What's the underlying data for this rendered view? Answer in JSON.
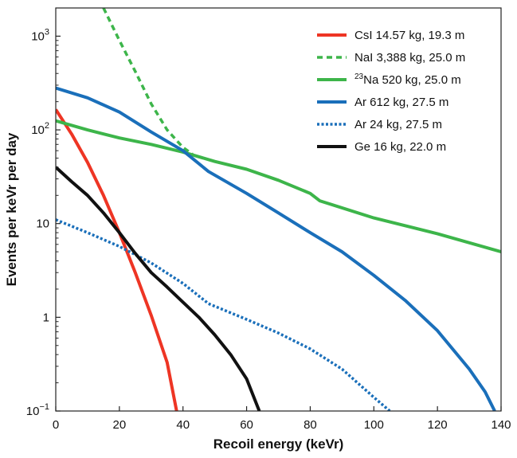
{
  "chart_data": {
    "type": "line",
    "title": "",
    "xlabel": "Recoil energy (keVr)",
    "ylabel": "Events per keVr per day",
    "xlim": [
      0,
      140
    ],
    "ylim": [
      0.1,
      2000
    ],
    "yscale": "log",
    "x_ticks": [
      0,
      20,
      40,
      60,
      80,
      100,
      120,
      140
    ],
    "y_ticks": [
      {
        "value": 0.1,
        "base": "10",
        "exp": "−1"
      },
      {
        "value": 1,
        "text": "1"
      },
      {
        "value": 10,
        "text": "10"
      },
      {
        "value": 100,
        "base": "10",
        "exp": "2"
      },
      {
        "value": 1000,
        "base": "10",
        "exp": "3"
      }
    ],
    "legend_position": "top-right",
    "series": [
      {
        "name": "CsI 14.57 kg, 19.3 m",
        "label_sup": "",
        "label_main": "CsI 14.57 kg, 19.3 m",
        "color": "#ee3524",
        "style": "solid",
        "points": [
          [
            0,
            165
          ],
          [
            5,
            90
          ],
          [
            10,
            45
          ],
          [
            15,
            20
          ],
          [
            20,
            8
          ],
          [
            25,
            3
          ],
          [
            30,
            1.05
          ],
          [
            35,
            0.33
          ],
          [
            38,
            0.1
          ]
        ]
      },
      {
        "name": "NaI 3,388 kg, 25.0 m",
        "label_sup": "",
        "label_main": "NaI 3,388 kg, 25.0 m",
        "color": "#3db54a",
        "style": "dashed",
        "points": [
          [
            15,
            2000
          ],
          [
            20,
            900
          ],
          [
            25,
            420
          ],
          [
            30,
            190
          ],
          [
            35,
            100
          ],
          [
            40,
            65
          ],
          [
            43,
            55
          ]
        ]
      },
      {
        "name": "23Na 520 kg, 25.0 m",
        "label_sup": "23",
        "label_main": "Na 520 kg, 25.0 m",
        "color": "#3db54a",
        "style": "solid",
        "points": [
          [
            0,
            125
          ],
          [
            10,
            100
          ],
          [
            20,
            82
          ],
          [
            30,
            70
          ],
          [
            40,
            58
          ],
          [
            50,
            46
          ],
          [
            60,
            38
          ],
          [
            70,
            29
          ],
          [
            80,
            21
          ],
          [
            83,
            17.5
          ],
          [
            100,
            11.5
          ],
          [
            120,
            7.8
          ],
          [
            140,
            5
          ]
        ]
      },
      {
        "name": "Ar 612 kg, 27.5 m",
        "label_sup": "",
        "label_main": "Ar 612 kg, 27.5 m",
        "color": "#1a6fba",
        "style": "solid",
        "points": [
          [
            0,
            280
          ],
          [
            10,
            220
          ],
          [
            20,
            155
          ],
          [
            30,
            95
          ],
          [
            40,
            60
          ],
          [
            48,
            36
          ],
          [
            60,
            21
          ],
          [
            70,
            13
          ],
          [
            80,
            8
          ],
          [
            90,
            5
          ],
          [
            100,
            2.8
          ],
          [
            110,
            1.5
          ],
          [
            120,
            0.72
          ],
          [
            130,
            0.28
          ],
          [
            135,
            0.16
          ],
          [
            138,
            0.1
          ]
        ]
      },
      {
        "name": "Ar 24 kg, 27.5 m",
        "label_sup": "",
        "label_main": "Ar 24 kg, 27.5 m",
        "color": "#1a6fba",
        "style": "dotted",
        "points": [
          [
            0,
            11
          ],
          [
            10,
            8
          ],
          [
            20,
            5.7
          ],
          [
            30,
            3.8
          ],
          [
            40,
            2.3
          ],
          [
            48,
            1.4
          ],
          [
            60,
            0.95
          ],
          [
            70,
            0.68
          ],
          [
            80,
            0.46
          ],
          [
            90,
            0.28
          ],
          [
            100,
            0.14
          ],
          [
            105,
            0.1
          ]
        ]
      },
      {
        "name": "Ge 16 kg, 22.0 m",
        "label_sup": "",
        "label_main": "Ge 16 kg, 22.0 m",
        "color": "#111111",
        "style": "solid",
        "points": [
          [
            0,
            40
          ],
          [
            5,
            28
          ],
          [
            10,
            20
          ],
          [
            15,
            13
          ],
          [
            20,
            8
          ],
          [
            25,
            4.8
          ],
          [
            30,
            3
          ],
          [
            35,
            2.1
          ],
          [
            40,
            1.45
          ],
          [
            45,
            1
          ],
          [
            50,
            0.65
          ],
          [
            55,
            0.4
          ],
          [
            60,
            0.22
          ],
          [
            64,
            0.1
          ]
        ]
      }
    ]
  }
}
